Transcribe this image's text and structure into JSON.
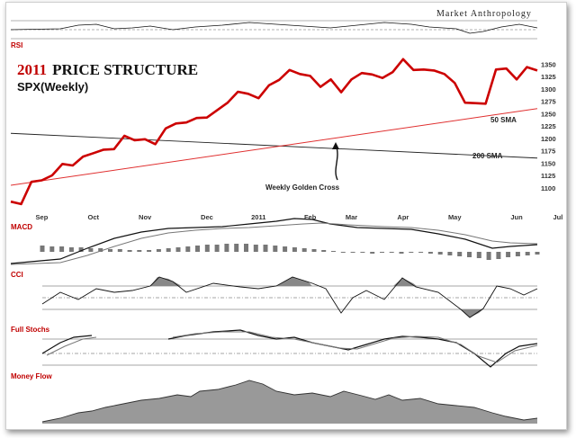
{
  "brand": "Market Anthropology",
  "title_year": "2011",
  "title_rest": "PRICE STRUCTURE",
  "subtitle": "SPX(Weekly)",
  "panels": {
    "rsi": "RSI",
    "macd": "MACD",
    "cci": "CCI",
    "stoch": "Full Stochs",
    "mfi": "Money Flow"
  },
  "annotations": {
    "sma50": "50 SMA",
    "sma200": "200 SMA",
    "golden_cross": "Weekly Golden Cross"
  },
  "colors": {
    "price": "#cc0000",
    "sma50": "#e03030",
    "sma200": "#222222",
    "accent": "#c00000",
    "hist": "#777777"
  },
  "chart_data": {
    "type": "line",
    "x_ticks": [
      "Sep",
      "Oct",
      "Nov",
      "Dec",
      "2011",
      "Feb",
      "Mar",
      "Apr",
      "May",
      "Jun",
      "Jul"
    ],
    "x_tick_weeks": [
      3,
      8,
      13,
      19,
      24,
      29,
      33,
      38,
      43,
      49,
      53
    ],
    "y_ticks": [
      1100,
      1125,
      1150,
      1175,
      1200,
      1225,
      1250,
      1275,
      1300,
      1325,
      1350
    ],
    "ylim": [
      1065,
      1365
    ],
    "series": [
      {
        "name": "SPX",
        "values": [
          1072,
          1067,
          1112,
          1115,
          1125,
          1148,
          1145,
          1163,
          1170,
          1177,
          1178,
          1205,
          1196,
          1198,
          1188,
          1220,
          1230,
          1232,
          1241,
          1242,
          1257,
          1272,
          1294,
          1290,
          1281,
          1307,
          1318,
          1338,
          1330,
          1326,
          1304,
          1319,
          1293,
          1319,
          1332,
          1329,
          1322,
          1334,
          1360,
          1338,
          1339,
          1337,
          1330,
          1312,
          1272,
          1271,
          1270,
          1339,
          1341,
          1319,
          1344,
          1337
        ]
      },
      {
        "name": "50 SMA",
        "values": [
          1105,
          1260
        ]
      },
      {
        "name": "200 SMA",
        "values": [
          1210,
          1160
        ]
      }
    ]
  }
}
